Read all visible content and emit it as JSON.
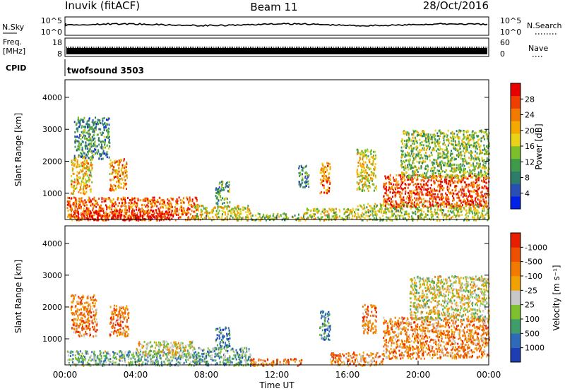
{
  "header": {
    "station": "Inuvik (fitACF)",
    "beam": "Beam 11",
    "date": "28/Oct/2016"
  },
  "strips": {
    "nsky": {
      "left_label": "N.Sky",
      "right_label": "N.Search",
      "left_ticks": [
        "10^5",
        "10^0"
      ],
      "right_ticks": [
        "10^5",
        "10^0"
      ]
    },
    "freq": {
      "left_label_1": "Freq.",
      "left_label_2": "[MHz]",
      "left_ticks": [
        "18",
        "8"
      ],
      "right_label": "Nave",
      "right_ticks": [
        "60",
        "0"
      ]
    },
    "cpid": {
      "label": "CPID",
      "text": "twofsound 3503"
    }
  },
  "chart_data": [
    {
      "type": "heatmap",
      "panel": "power",
      "ylabel": "Slant Range [km]",
      "ylim": [
        180,
        4550
      ],
      "yticks": [
        1000,
        2000,
        3000,
        4000
      ],
      "xlim": [
        0,
        24
      ],
      "colorbar": {
        "label": "Power [dB]",
        "ticks": [
          "4",
          "8",
          "12",
          "16",
          "20",
          "24",
          "28"
        ],
        "colors": [
          "#0022e8",
          "#2a4fb4",
          "#2e7d6a",
          "#3d9b4a",
          "#7bbf2a",
          "#e8d21a",
          "#f5a800",
          "#f27a00",
          "#ee3f00",
          "#e80000"
        ]
      },
      "patches": [
        {
          "t0": 0.1,
          "t1": 7.5,
          "r0": 180,
          "r1": 900,
          "level": 0.8
        },
        {
          "t0": 0.2,
          "t1": 6.0,
          "r0": 180,
          "r1": 500,
          "level": 0.95
        },
        {
          "t0": 7.3,
          "t1": 10.5,
          "r0": 180,
          "r1": 650,
          "level": 0.55
        },
        {
          "t0": 10.5,
          "t1": 13.5,
          "r0": 180,
          "r1": 400,
          "level": 0.45
        },
        {
          "t0": 13.5,
          "t1": 16.5,
          "r0": 180,
          "r1": 550,
          "level": 0.55
        },
        {
          "t0": 16.5,
          "t1": 24.0,
          "r0": 180,
          "r1": 700,
          "level": 0.5
        },
        {
          "t0": 18.0,
          "t1": 24.0,
          "r0": 600,
          "r1": 1600,
          "level": 0.85
        },
        {
          "t0": 0.3,
          "t1": 1.5,
          "r0": 1000,
          "r1": 2200,
          "level": 0.6
        },
        {
          "t0": 2.5,
          "t1": 3.5,
          "r0": 1100,
          "r1": 2100,
          "level": 0.7
        },
        {
          "t0": 8.5,
          "t1": 9.3,
          "r0": 700,
          "r1": 1400,
          "level": 0.35
        },
        {
          "t0": 14.4,
          "t1": 15.0,
          "r0": 1000,
          "r1": 2000,
          "level": 0.75
        },
        {
          "t0": 16.5,
          "t1": 17.6,
          "r0": 1100,
          "r1": 2400,
          "level": 0.55
        },
        {
          "t0": 19.0,
          "t1": 24.0,
          "r0": 1500,
          "r1": 3000,
          "level": 0.45
        },
        {
          "t0": 0.5,
          "t1": 2.5,
          "r0": 2100,
          "r1": 3400,
          "level": 0.3
        },
        {
          "t0": 13.2,
          "t1": 13.8,
          "r0": 1200,
          "r1": 1900,
          "level": 0.3
        }
      ]
    },
    {
      "type": "heatmap",
      "panel": "velocity",
      "ylabel": "Slant Range [km]",
      "ylim": [
        180,
        4550
      ],
      "yticks": [
        1000,
        2000,
        3000,
        4000
      ],
      "xlim": [
        0,
        24
      ],
      "xticks": [
        "00:00",
        "04:00",
        "08:00",
        "12:00",
        "16:00",
        "20:00",
        "00:00"
      ],
      "xlabel": "Time UT",
      "colorbar": {
        "label": "Velocity [m s⁻¹]",
        "ticks": [
          "1000",
          "500",
          "100",
          "25",
          "-25",
          "-100",
          "-500",
          "-1000"
        ],
        "colors": [
          "#1e3fb4",
          "#2e6ab8",
          "#3f9d6a",
          "#7dc12e",
          "#c8c8c8",
          "#f2a200",
          "#f27a00",
          "#ee5000",
          "#e81e00"
        ]
      },
      "patches": [
        {
          "t0": 0.1,
          "t1": 7.5,
          "r0": 180,
          "r1": 650,
          "level": 0.35
        },
        {
          "t0": 4.0,
          "t1": 7.2,
          "r0": 450,
          "r1": 950,
          "level": 0.5
        },
        {
          "t0": 7.2,
          "t1": 10.5,
          "r0": 180,
          "r1": 750,
          "level": 0.3
        },
        {
          "t0": 0.3,
          "t1": 1.8,
          "r0": 1100,
          "r1": 2400,
          "level": 0.72
        },
        {
          "t0": 2.5,
          "t1": 3.6,
          "r0": 1100,
          "r1": 2100,
          "level": 0.72
        },
        {
          "t0": 14.4,
          "t1": 15.0,
          "r0": 1000,
          "r1": 1900,
          "level": 0.25
        },
        {
          "t0": 16.8,
          "t1": 17.6,
          "r0": 1200,
          "r1": 2100,
          "level": 0.72
        },
        {
          "t0": 18.0,
          "t1": 24.0,
          "r0": 400,
          "r1": 1700,
          "level": 0.72
        },
        {
          "t0": 19.5,
          "t1": 24.0,
          "r0": 1600,
          "r1": 3000,
          "level": 0.5
        },
        {
          "t0": 15.0,
          "t1": 18.0,
          "r0": 180,
          "r1": 600,
          "level": 0.7
        },
        {
          "t0": 10.5,
          "t1": 13.5,
          "r0": 180,
          "r1": 400,
          "level": 0.7
        },
        {
          "t0": 8.5,
          "t1": 9.3,
          "r0": 700,
          "r1": 1400,
          "level": 0.2
        }
      ]
    }
  ]
}
